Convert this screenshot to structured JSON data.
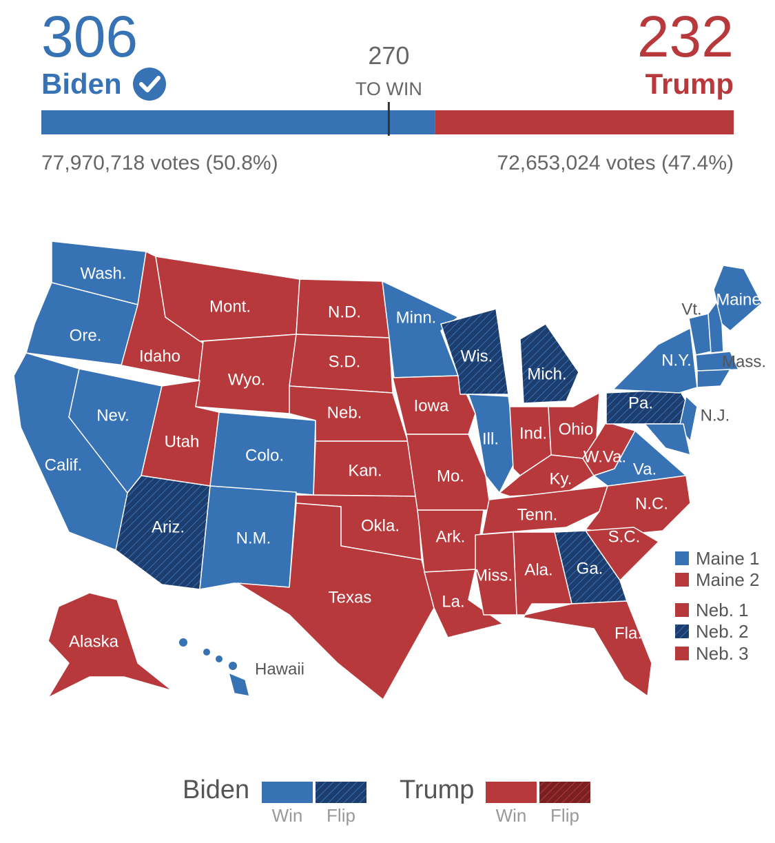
{
  "header": {
    "candidates": [
      {
        "name": "Biden",
        "electoral_votes": 306,
        "popular_vote": "77,970,718 votes (50.8%)",
        "color": "#3672b4",
        "flip_color": "#1c3d6e"
      },
      {
        "name": "Trump",
        "electoral_votes": 232,
        "popular_vote": "72,653,024 votes (47.4%)",
        "color": "#b8393b",
        "flip_color": "#7a2022"
      }
    ],
    "threshold": {
      "value": 270,
      "label": "TO WIN"
    }
  },
  "map": {
    "states": [
      {
        "label": "Wash.",
        "candidate": 0,
        "flip": false
      },
      {
        "label": "Ore.",
        "candidate": 0,
        "flip": false
      },
      {
        "label": "Calif.",
        "candidate": 0,
        "flip": false
      },
      {
        "label": "Nev.",
        "candidate": 0,
        "flip": false
      },
      {
        "label": "Idaho",
        "candidate": 1,
        "flip": false
      },
      {
        "label": "Mont.",
        "candidate": 1,
        "flip": false
      },
      {
        "label": "Wyo.",
        "candidate": 1,
        "flip": false
      },
      {
        "label": "Utah",
        "candidate": 1,
        "flip": false
      },
      {
        "label": "Colo.",
        "candidate": 0,
        "flip": false
      },
      {
        "label": "Ariz.",
        "candidate": 0,
        "flip": true
      },
      {
        "label": "N.M.",
        "candidate": 0,
        "flip": false
      },
      {
        "label": "N.D.",
        "candidate": 1,
        "flip": false
      },
      {
        "label": "S.D.",
        "candidate": 1,
        "flip": false
      },
      {
        "label": "Neb.",
        "candidate": 1,
        "flip": false
      },
      {
        "label": "Kan.",
        "candidate": 1,
        "flip": false
      },
      {
        "label": "Okla.",
        "candidate": 1,
        "flip": false
      },
      {
        "label": "Texas",
        "candidate": 1,
        "flip": false
      },
      {
        "label": "Minn.",
        "candidate": 0,
        "flip": false
      },
      {
        "label": "Iowa",
        "candidate": 1,
        "flip": false
      },
      {
        "label": "Mo.",
        "candidate": 1,
        "flip": false
      },
      {
        "label": "Ark.",
        "candidate": 1,
        "flip": false
      },
      {
        "label": "La.",
        "candidate": 1,
        "flip": false
      },
      {
        "label": "Wis.",
        "candidate": 0,
        "flip": true
      },
      {
        "label": "Ill.",
        "candidate": 0,
        "flip": false
      },
      {
        "label": "Mich.",
        "candidate": 0,
        "flip": true
      },
      {
        "label": "Ind.",
        "candidate": 1,
        "flip": false
      },
      {
        "label": "Ohio",
        "candidate": 1,
        "flip": false
      },
      {
        "label": "Ky.",
        "candidate": 1,
        "flip": false
      },
      {
        "label": "Tenn.",
        "candidate": 1,
        "flip": false
      },
      {
        "label": "W.Va.",
        "candidate": 1,
        "flip": false
      },
      {
        "label": "Va.",
        "candidate": 0,
        "flip": false
      },
      {
        "label": "N.C.",
        "candidate": 1,
        "flip": false
      },
      {
        "label": "S.C.",
        "candidate": 1,
        "flip": false
      },
      {
        "label": "Ga.",
        "candidate": 0,
        "flip": true
      },
      {
        "label": "Ala.",
        "candidate": 1,
        "flip": false
      },
      {
        "label": "Miss.",
        "candidate": 1,
        "flip": false
      },
      {
        "label": "Fla.",
        "candidate": 1,
        "flip": false
      },
      {
        "label": "Pa.",
        "candidate": 0,
        "flip": true
      },
      {
        "label": "N.Y.",
        "candidate": 0,
        "flip": false
      },
      {
        "label": "N.J.",
        "candidate": 0,
        "flip": false
      },
      {
        "label": null,
        "candidate": 0,
        "flip": false
      },
      {
        "label": "Vt.",
        "candidate": 0,
        "flip": false
      },
      {
        "label": null,
        "candidate": 0,
        "flip": false
      },
      {
        "label": "Maine",
        "candidate": 0,
        "flip": false
      },
      {
        "label": "Mass.",
        "candidate": 0,
        "flip": false
      },
      {
        "label": null,
        "candidate": 0,
        "flip": false
      },
      {
        "label": "Alaska",
        "candidate": 1,
        "flip": false
      },
      {
        "label": "Hawaii",
        "candidate": 0,
        "flip": false
      }
    ],
    "districts": [
      {
        "label": "Maine 1",
        "candidate": 0,
        "flip": false
      },
      {
        "label": "Maine 2",
        "candidate": 1,
        "flip": false
      },
      {
        "label": "Neb. 1",
        "candidate": 1,
        "flip": false
      },
      {
        "label": "Neb. 2",
        "candidate": 0,
        "flip": true
      },
      {
        "label": "Neb. 3",
        "candidate": 1,
        "flip": false
      }
    ]
  },
  "legend": {
    "win": "Win",
    "flip": "Flip"
  }
}
